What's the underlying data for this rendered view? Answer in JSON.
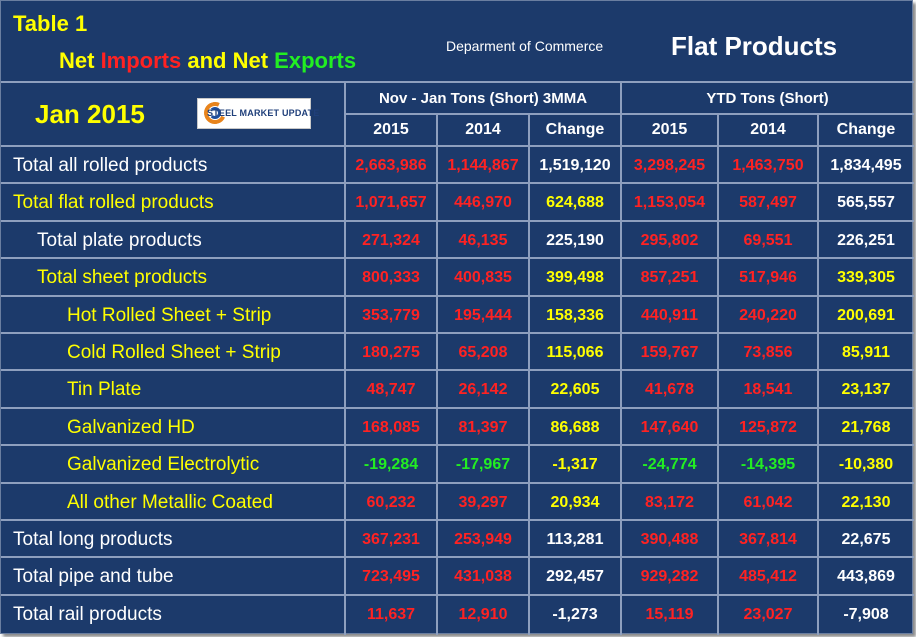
{
  "header": {
    "table_number": "Table 1",
    "subtitle_part1": "Net ",
    "subtitle_part2": "Imports",
    "subtitle_part3": " and Net ",
    "subtitle_part4": "Exports",
    "department": "Deparment of Commerce",
    "product_title": "Flat Products",
    "month": "Jan 2015",
    "logo_text": "STEEL MARKET UPDATE"
  },
  "column_groups": [
    "Nov - Jan Tons (Short) 3MMA",
    "YTD Tons (Short)"
  ],
  "columns": [
    "2015",
    "2014",
    "Change",
    "2015",
    "2014",
    "Change"
  ],
  "colors": {
    "background": "#1c3a6b",
    "label_yellow": "#ffff00",
    "imports_red": "#ff2222",
    "exports_green": "#22ee22",
    "grid": "#8e9fbe"
  },
  "rows": [
    {
      "label": "Total all rolled products",
      "label_color": "white",
      "indent": 0,
      "values": [
        "2,663,986",
        "1,144,867",
        "1,519,120",
        "3,298,245",
        "1,463,750",
        "1,834,495"
      ],
      "colors": [
        "r",
        "r",
        "w",
        "r",
        "r",
        "w"
      ]
    },
    {
      "label": "Total flat rolled products",
      "label_color": "yellow",
      "indent": 0,
      "values": [
        "1,071,657",
        "446,970",
        "624,688",
        "1,153,054",
        "587,497",
        "565,557"
      ],
      "colors": [
        "r",
        "r",
        "y",
        "r",
        "r",
        "w"
      ]
    },
    {
      "label": "Total plate products",
      "label_color": "white",
      "indent": 1,
      "values": [
        "271,324",
        "46,135",
        "225,190",
        "295,802",
        "69,551",
        "226,251"
      ],
      "colors": [
        "r",
        "r",
        "w",
        "r",
        "r",
        "w"
      ]
    },
    {
      "label": "Total sheet products",
      "label_color": "yellow",
      "indent": 1,
      "values": [
        "800,333",
        "400,835",
        "399,498",
        "857,251",
        "517,946",
        "339,305"
      ],
      "colors": [
        "r",
        "r",
        "y",
        "r",
        "r",
        "y"
      ]
    },
    {
      "label": "Hot Rolled Sheet + Strip",
      "label_color": "yellow",
      "indent": 2,
      "values": [
        "353,779",
        "195,444",
        "158,336",
        "440,911",
        "240,220",
        "200,691"
      ],
      "colors": [
        "r",
        "r",
        "y",
        "r",
        "r",
        "y"
      ]
    },
    {
      "label": "Cold Rolled Sheet + Strip",
      "label_color": "yellow",
      "indent": 2,
      "values": [
        "180,275",
        "65,208",
        "115,066",
        "159,767",
        "73,856",
        "85,911"
      ],
      "colors": [
        "r",
        "r",
        "y",
        "r",
        "r",
        "y"
      ]
    },
    {
      "label": "Tin Plate",
      "label_color": "yellow",
      "indent": 2,
      "values": [
        "48,747",
        "26,142",
        "22,605",
        "41,678",
        "18,541",
        "23,137"
      ],
      "colors": [
        "r",
        "r",
        "y",
        "r",
        "r",
        "y"
      ]
    },
    {
      "label": "Galvanized HD",
      "label_color": "yellow",
      "indent": 2,
      "values": [
        "168,085",
        "81,397",
        "86,688",
        "147,640",
        "125,872",
        "21,768"
      ],
      "colors": [
        "r",
        "r",
        "y",
        "r",
        "r",
        "y"
      ]
    },
    {
      "label": "Galvanized Electrolytic",
      "label_color": "yellow",
      "indent": 2,
      "values": [
        "-19,284",
        "-17,967",
        "-1,317",
        "-24,774",
        "-14,395",
        "-10,380"
      ],
      "colors": [
        "g",
        "g",
        "y",
        "g",
        "g",
        "y"
      ]
    },
    {
      "label": "All other Metallic Coated",
      "label_color": "yellow",
      "indent": 2,
      "values": [
        "60,232",
        "39,297",
        "20,934",
        "83,172",
        "61,042",
        "22,130"
      ],
      "colors": [
        "r",
        "r",
        "y",
        "r",
        "r",
        "y"
      ]
    },
    {
      "label": "Total long products",
      "label_color": "white",
      "indent": 0,
      "values": [
        "367,231",
        "253,949",
        "113,281",
        "390,488",
        "367,814",
        "22,675"
      ],
      "colors": [
        "r",
        "r",
        "w",
        "r",
        "r",
        "w"
      ]
    },
    {
      "label": "Total pipe and tube",
      "label_color": "white",
      "indent": 0,
      "values": [
        "723,495",
        "431,038",
        "292,457",
        "929,282",
        "485,412",
        "443,869"
      ],
      "colors": [
        "r",
        "r",
        "w",
        "r",
        "r",
        "w"
      ]
    },
    {
      "label": "Total rail products",
      "label_color": "white",
      "indent": 0,
      "values": [
        "11,637",
        "12,910",
        "-1,273",
        "15,119",
        "23,027",
        "-7,908"
      ],
      "colors": [
        "r",
        "r",
        "w",
        "r",
        "r",
        "w"
      ]
    }
  ]
}
